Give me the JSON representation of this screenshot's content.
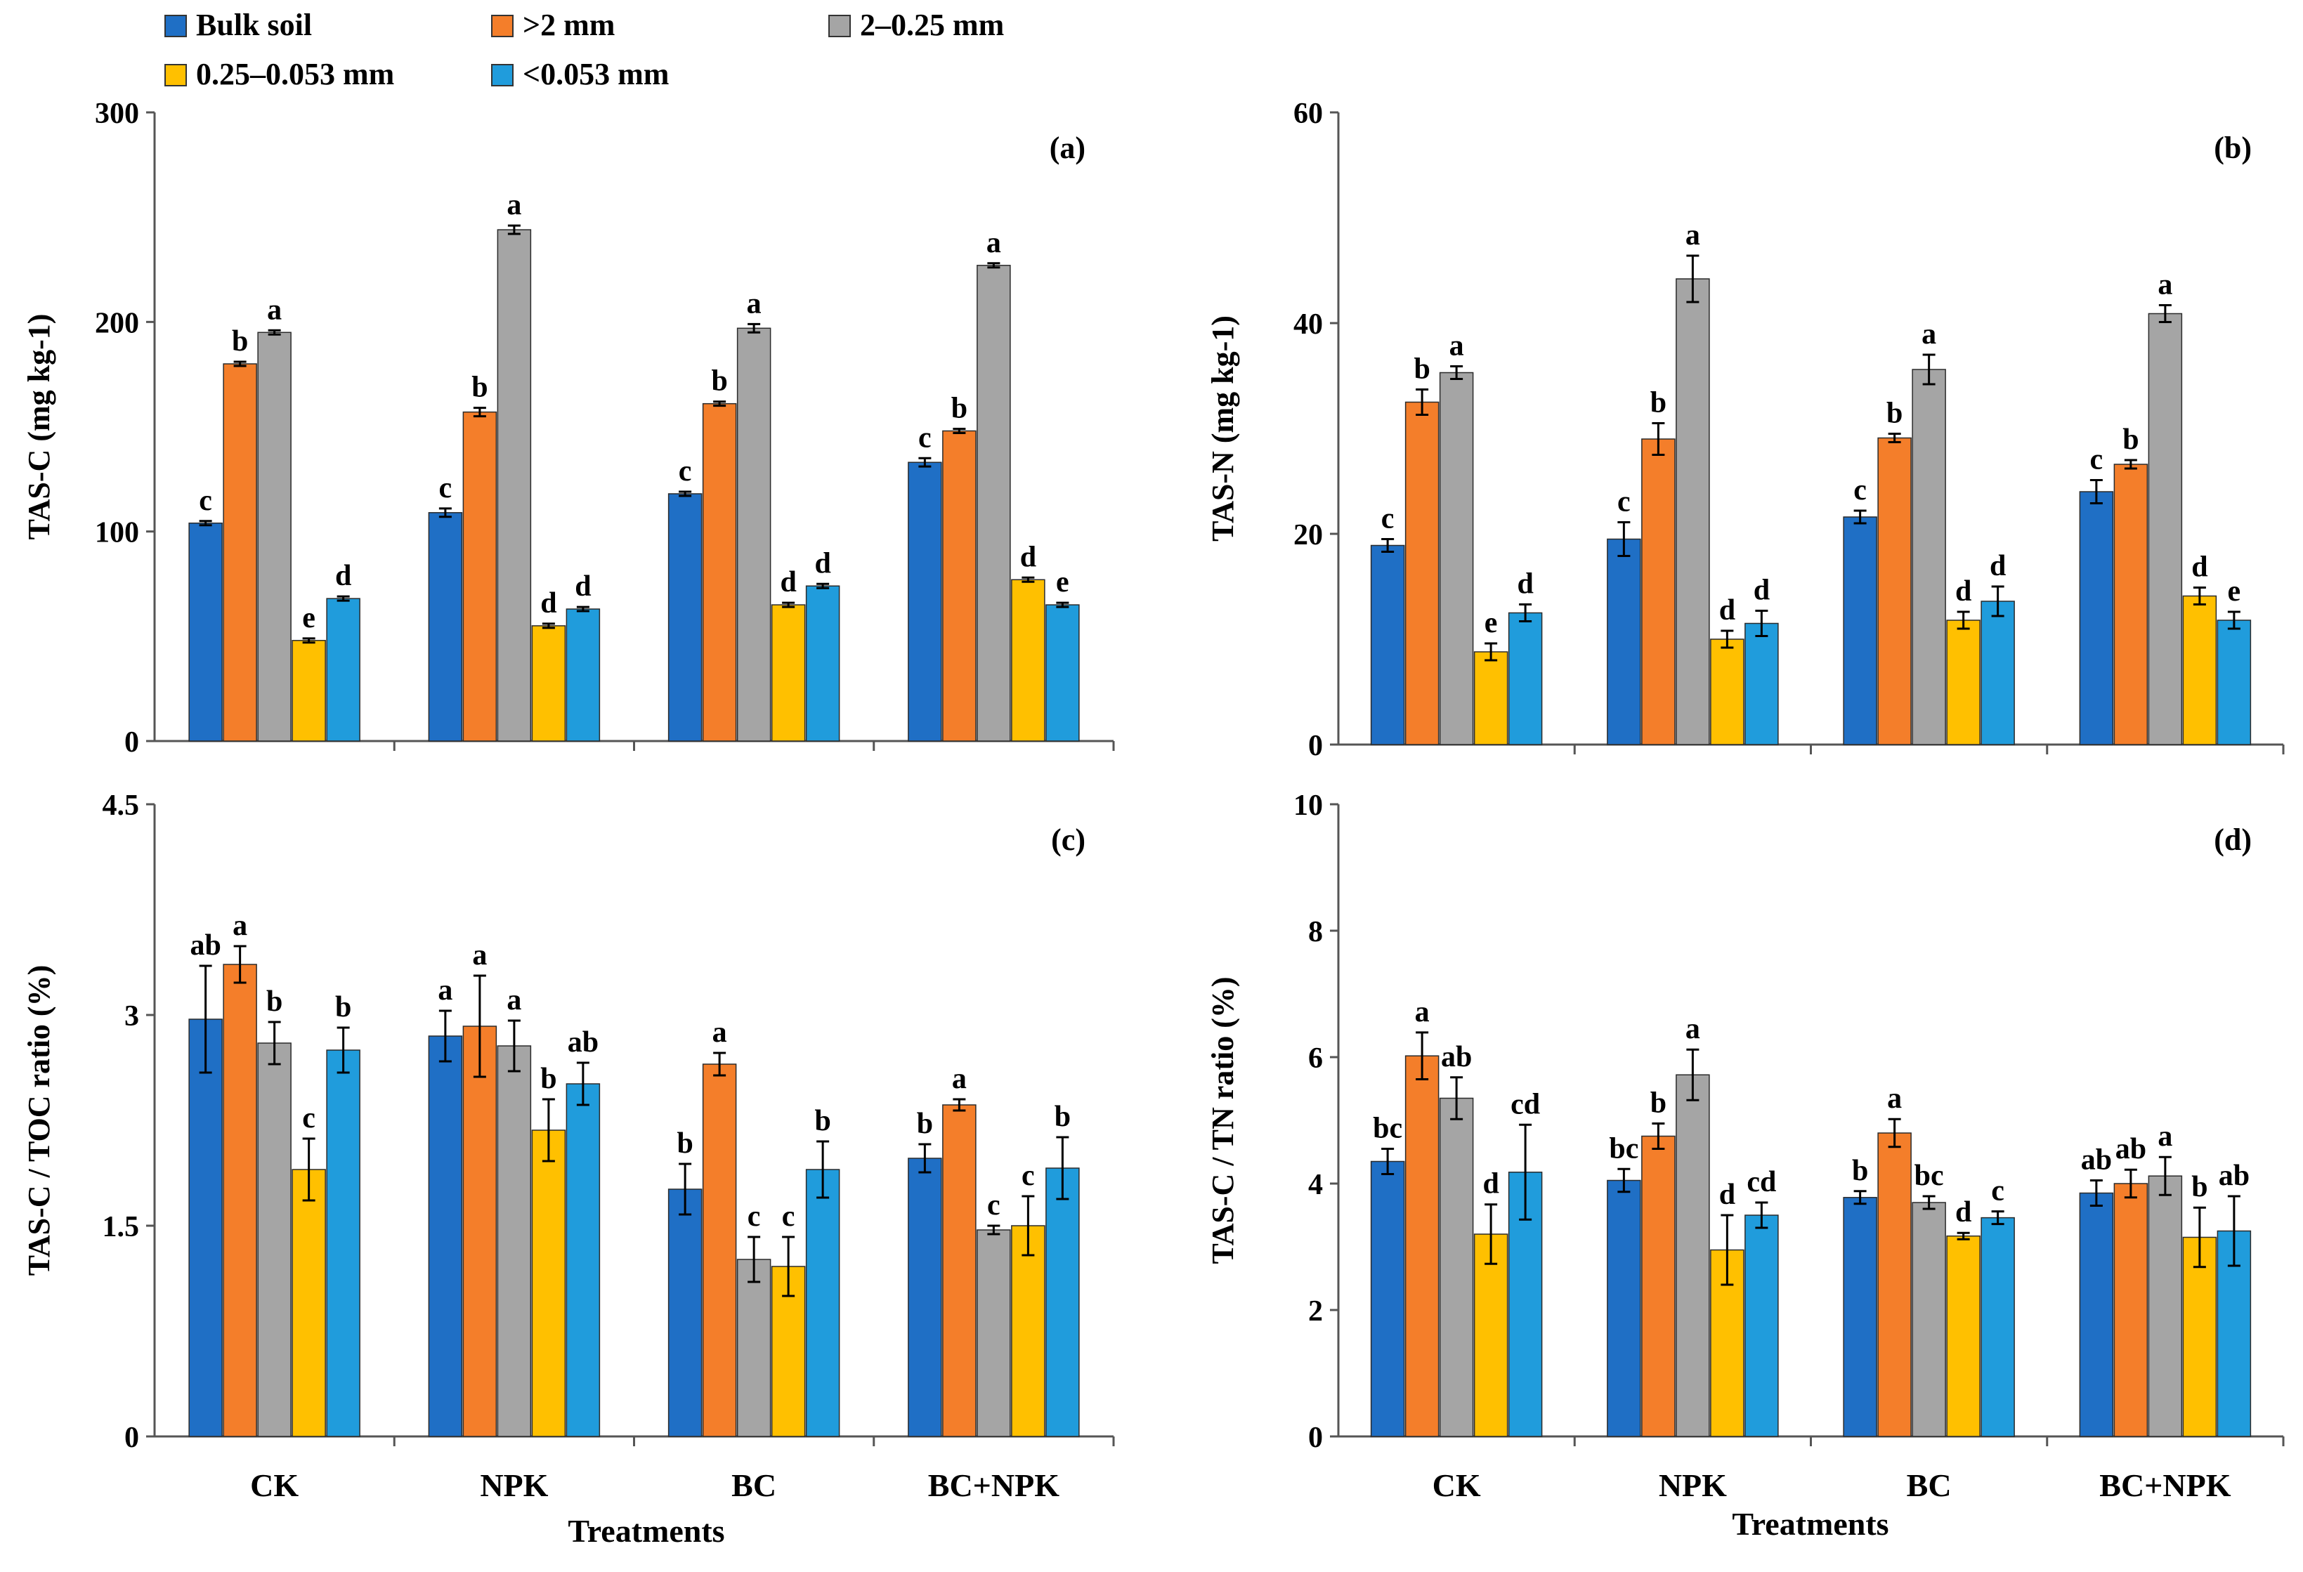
{
  "figure": {
    "x_axis_title": "Treatments",
    "legend": [
      {
        "name": "Bulk soil",
        "color": "#1F6FC5"
      },
      {
        "name": ">2 mm",
        "color": "#F47E2A"
      },
      {
        "name": "2–0.25 mm",
        "color": "#A5A5A5"
      },
      {
        "name": "0.25–0.053 mm",
        "color": "#FFC000"
      },
      {
        "name": "<0.053 mm",
        "color": "#209CDC"
      }
    ]
  },
  "chart_data": [
    {
      "type": "bar",
      "panel": "(a)",
      "title": "",
      "xlabel": "Treatments",
      "ylabel": "TAS-C (mg kg-1)",
      "ylim": [
        0,
        300
      ],
      "yticks": [
        "0",
        "100",
        "200",
        "300"
      ],
      "categories": [
        "CK",
        "NPK",
        "BC",
        "BC+NPK"
      ],
      "series": [
        {
          "name": "Bulk soil",
          "values": [
            104,
            109,
            118,
            133
          ],
          "errors": [
            1,
            2,
            1,
            2
          ],
          "letters": [
            "c",
            "c",
            "c",
            "c"
          ]
        },
        {
          "name": ">2 mm",
          "values": [
            180,
            157,
            161,
            148
          ],
          "errors": [
            1,
            2,
            1,
            1
          ],
          "letters": [
            "b",
            "b",
            "b",
            "b"
          ]
        },
        {
          "name": "2–0.25 mm",
          "values": [
            195,
            244,
            197,
            227
          ],
          "errors": [
            1,
            2,
            2,
            1
          ],
          "letters": [
            "a",
            "a",
            "a",
            "a"
          ]
        },
        {
          "name": "0.25–0.053 mm",
          "values": [
            48,
            55,
            65,
            77
          ],
          "errors": [
            1,
            1,
            1,
            1
          ],
          "letters": [
            "e",
            "d",
            "d",
            "d"
          ]
        },
        {
          "name": "<0.053 mm",
          "values": [
            68,
            63,
            74,
            65
          ],
          "errors": [
            1,
            1,
            1,
            1
          ],
          "letters": [
            "d",
            "d",
            "d",
            "e"
          ]
        }
      ]
    },
    {
      "type": "bar",
      "panel": "(b)",
      "title": "",
      "xlabel": "Treatments",
      "ylabel": "TAS-N (mg kg-1)",
      "ylim": [
        0,
        60
      ],
      "yticks": [
        "0",
        "20",
        "40",
        "60"
      ],
      "categories": [
        "CK",
        "NPK",
        "BC",
        "BC+NPK"
      ],
      "series": [
        {
          "name": "Bulk soil",
          "values": [
            18.9,
            19.5,
            21.6,
            24.0
          ],
          "errors": [
            0.6,
            1.6,
            0.6,
            1.1
          ],
          "letters": [
            "c",
            "c",
            "c",
            "c"
          ]
        },
        {
          "name": ">2 mm",
          "values": [
            32.5,
            29.0,
            29.1,
            26.6
          ],
          "errors": [
            1.2,
            1.5,
            0.4,
            0.4
          ],
          "letters": [
            "b",
            "b",
            "b",
            "b"
          ]
        },
        {
          "name": "2–0.25 mm",
          "values": [
            35.3,
            44.2,
            35.6,
            40.9
          ],
          "errors": [
            0.6,
            2.2,
            1.4,
            0.8
          ],
          "letters": [
            "a",
            "a",
            "a",
            "a"
          ]
        },
        {
          "name": "0.25–0.053 mm",
          "values": [
            8.8,
            10.0,
            11.8,
            14.1
          ],
          "errors": [
            0.8,
            0.8,
            0.8,
            0.8
          ],
          "letters": [
            "e",
            "d",
            "d",
            "d"
          ]
        },
        {
          "name": "<0.053 mm",
          "values": [
            12.5,
            11.5,
            13.6,
            11.8
          ],
          "errors": [
            0.8,
            1.2,
            1.4,
            0.8
          ],
          "letters": [
            "d",
            "d",
            "d",
            "e"
          ]
        }
      ]
    },
    {
      "type": "bar",
      "panel": "(c)",
      "title": "",
      "xlabel": "Treatments",
      "ylabel": "TAS-C / TOC ratio (%)",
      "ylim": [
        0,
        4.5
      ],
      "yticks": [
        "0",
        "1.5",
        "3",
        "4.5"
      ],
      "categories": [
        "CK",
        "NPK",
        "BC",
        "BC+NPK"
      ],
      "series": [
        {
          "name": "Bulk soil",
          "values": [
            2.97,
            2.85,
            1.76,
            1.98
          ],
          "errors": [
            0.38,
            0.18,
            0.18,
            0.1
          ],
          "letters": [
            "ab",
            "a",
            "b",
            "b"
          ]
        },
        {
          "name": ">2 mm",
          "values": [
            3.36,
            2.92,
            2.65,
            2.36
          ],
          "errors": [
            0.13,
            0.36,
            0.08,
            0.04
          ],
          "letters": [
            "a",
            "a",
            "a",
            "a"
          ]
        },
        {
          "name": "2–0.25 mm",
          "values": [
            2.8,
            2.78,
            1.26,
            1.47
          ],
          "errors": [
            0.15,
            0.18,
            0.16,
            0.03
          ],
          "letters": [
            "b",
            "a",
            "c",
            "c"
          ]
        },
        {
          "name": "0.25–0.053 mm",
          "values": [
            1.9,
            2.18,
            1.21,
            1.5
          ],
          "errors": [
            0.22,
            0.22,
            0.21,
            0.21
          ],
          "letters": [
            "c",
            "b",
            "c",
            "c"
          ]
        },
        {
          "name": "<0.053 mm",
          "values": [
            2.75,
            2.51,
            1.9,
            1.91
          ],
          "errors": [
            0.16,
            0.15,
            0.2,
            0.22
          ],
          "letters": [
            "b",
            "ab",
            "b",
            "b"
          ]
        }
      ]
    },
    {
      "type": "bar",
      "panel": "(d)",
      "title": "",
      "xlabel": "Treatments",
      "ylabel": "TAS-C / TN ratio (%)",
      "ylim": [
        0,
        10
      ],
      "yticks": [
        "0",
        "2",
        "4",
        "6",
        "8",
        "10"
      ],
      "categories": [
        "CK",
        "NPK",
        "BC",
        "BC+NPK"
      ],
      "series": [
        {
          "name": "Bulk soil",
          "values": [
            4.35,
            4.05,
            3.78,
            3.85
          ],
          "errors": [
            0.2,
            0.18,
            0.1,
            0.2
          ],
          "letters": [
            "bc",
            "bc",
            "b",
            "ab"
          ]
        },
        {
          "name": ">2 mm",
          "values": [
            6.02,
            4.75,
            4.8,
            4.0
          ],
          "errors": [
            0.37,
            0.2,
            0.22,
            0.22
          ],
          "letters": [
            "a",
            "b",
            "a",
            "ab"
          ]
        },
        {
          "name": "2–0.25 mm",
          "values": [
            5.35,
            5.72,
            3.7,
            4.12
          ],
          "errors": [
            0.33,
            0.4,
            0.1,
            0.3
          ],
          "letters": [
            "ab",
            "a",
            "bc",
            "a"
          ]
        },
        {
          "name": "0.25–0.053 mm",
          "values": [
            3.2,
            2.95,
            3.17,
            3.15
          ],
          "errors": [
            0.47,
            0.55,
            0.05,
            0.47
          ],
          "letters": [
            "d",
            "d",
            "d",
            "b"
          ]
        },
        {
          "name": "<0.053 mm",
          "values": [
            4.18,
            3.5,
            3.46,
            3.25
          ],
          "errors": [
            0.75,
            0.2,
            0.1,
            0.55
          ],
          "letters": [
            "cd",
            "cd",
            "c",
            "ab"
          ]
        }
      ]
    }
  ]
}
